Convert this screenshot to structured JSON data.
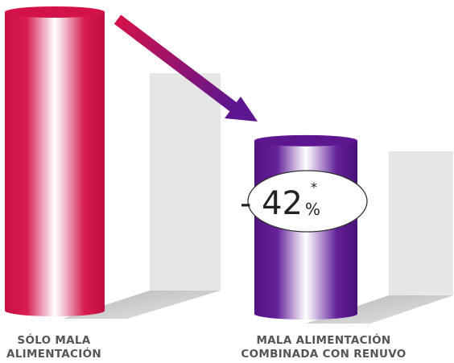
{
  "chart_data": {
    "type": "bar",
    "categories": [
      "SÓLO MALA ALIMENTACIÓN",
      "MALA ALIMENTACIÓN COMBINADA CON RENUVO"
    ],
    "category_lines": [
      [
        "SÓLO MALA",
        "ALIMENTACIÓN"
      ],
      [
        "MALA ALIMENTACIÓN",
        "COMBINADA CON RENUVO"
      ]
    ],
    "values": [
      100,
      58
    ],
    "ylim": [
      0,
      100
    ],
    "colors": [
      "#d4124a",
      "#5c1690"
    ],
    "grid": false,
    "legend": "none",
    "annotation": {
      "main": "- 42",
      "unit": "%",
      "mark": "*"
    }
  }
}
